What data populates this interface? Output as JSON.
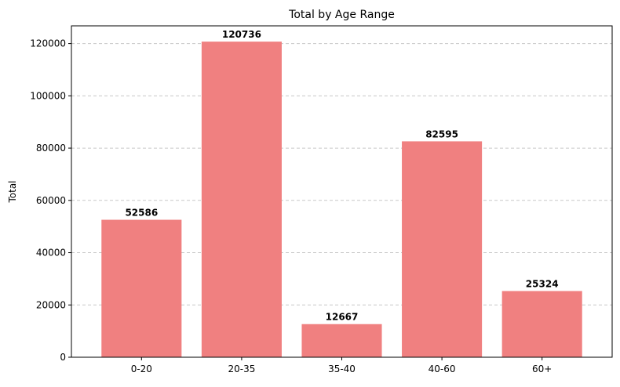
{
  "chart_data": {
    "type": "bar",
    "title": "Total by Age Range",
    "xlabel": "",
    "ylabel": "Total",
    "categories": [
      "0-20",
      "20-35",
      "35-40",
      "40-60",
      "60+"
    ],
    "values": [
      52586,
      120736,
      12667,
      82595,
      25324
    ],
    "data_labels": [
      "52586",
      "120736",
      "12667",
      "82595",
      "25324"
    ],
    "ylim": [
      0,
      126773
    ],
    "yticks": [
      0,
      20000,
      40000,
      60000,
      80000,
      100000,
      120000
    ],
    "ytick_labels": [
      "0",
      "20000",
      "40000",
      "60000",
      "80000",
      "100000",
      "120000"
    ],
    "grid": {
      "axis": "y",
      "style": "dashed",
      "color": "#c8c8c8"
    },
    "bar_color": "#f08080",
    "legend": "none"
  }
}
